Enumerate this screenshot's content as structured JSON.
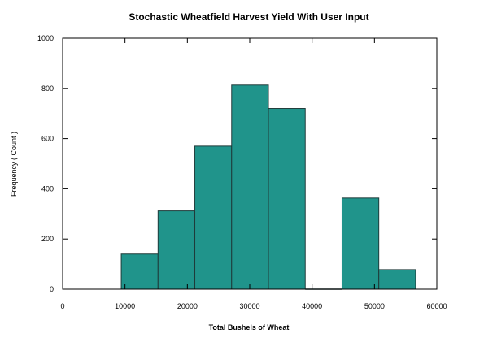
{
  "chart_data": {
    "type": "bar",
    "title": "Stochastic Wheatfield Harvest Yield With User Input",
    "xlabel": "Total Bushels of Wheat",
    "ylabel": "Frequency ( Count )",
    "xlim": [
      0,
      60000
    ],
    "ylim": [
      0,
      1000
    ],
    "x_ticks": [
      0,
      10000,
      20000,
      30000,
      40000,
      50000,
      60000
    ],
    "y_ticks": [
      0,
      200,
      400,
      600,
      800,
      1000
    ],
    "grid": false,
    "legend": "none",
    "bar_color": "#20948B",
    "bar_edge_color": "#1F3B3A",
    "bins": [
      {
        "x0": 9400,
        "x1": 15300,
        "count": 140
      },
      {
        "x0": 15300,
        "x1": 21200,
        "count": 312
      },
      {
        "x0": 21200,
        "x1": 27100,
        "count": 570
      },
      {
        "x0": 27100,
        "x1": 33000,
        "count": 813
      },
      {
        "x0": 33000,
        "x1": 38900,
        "count": 720
      },
      {
        "x0": 38900,
        "x1": 44800,
        "count": 0
      },
      {
        "x0": 44800,
        "x1": 50700,
        "count": 363
      },
      {
        "x0": 50700,
        "x1": 56600,
        "count": 78
      }
    ]
  }
}
